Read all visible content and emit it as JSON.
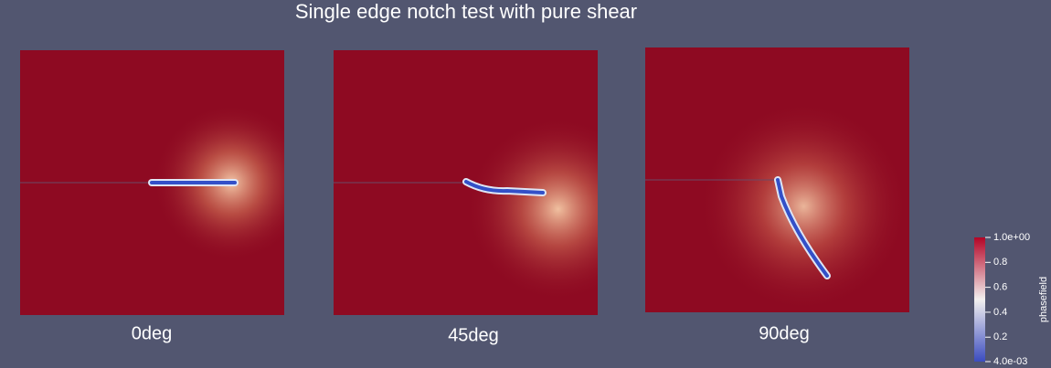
{
  "title": "Single edge notch test with pure shear",
  "panels": [
    {
      "label": "0deg"
    },
    {
      "label": "45deg"
    },
    {
      "label": "90deg"
    }
  ],
  "colorbar": {
    "title": "phasefield",
    "range": [
      0.004,
      1
    ],
    "ticks": [
      {
        "value": 1,
        "label": "1.0e+00"
      },
      0.8,
      0.6,
      0.4,
      0.2,
      {
        "value": 0.004,
        "label": "4.0e-03"
      }
    ]
  }
}
